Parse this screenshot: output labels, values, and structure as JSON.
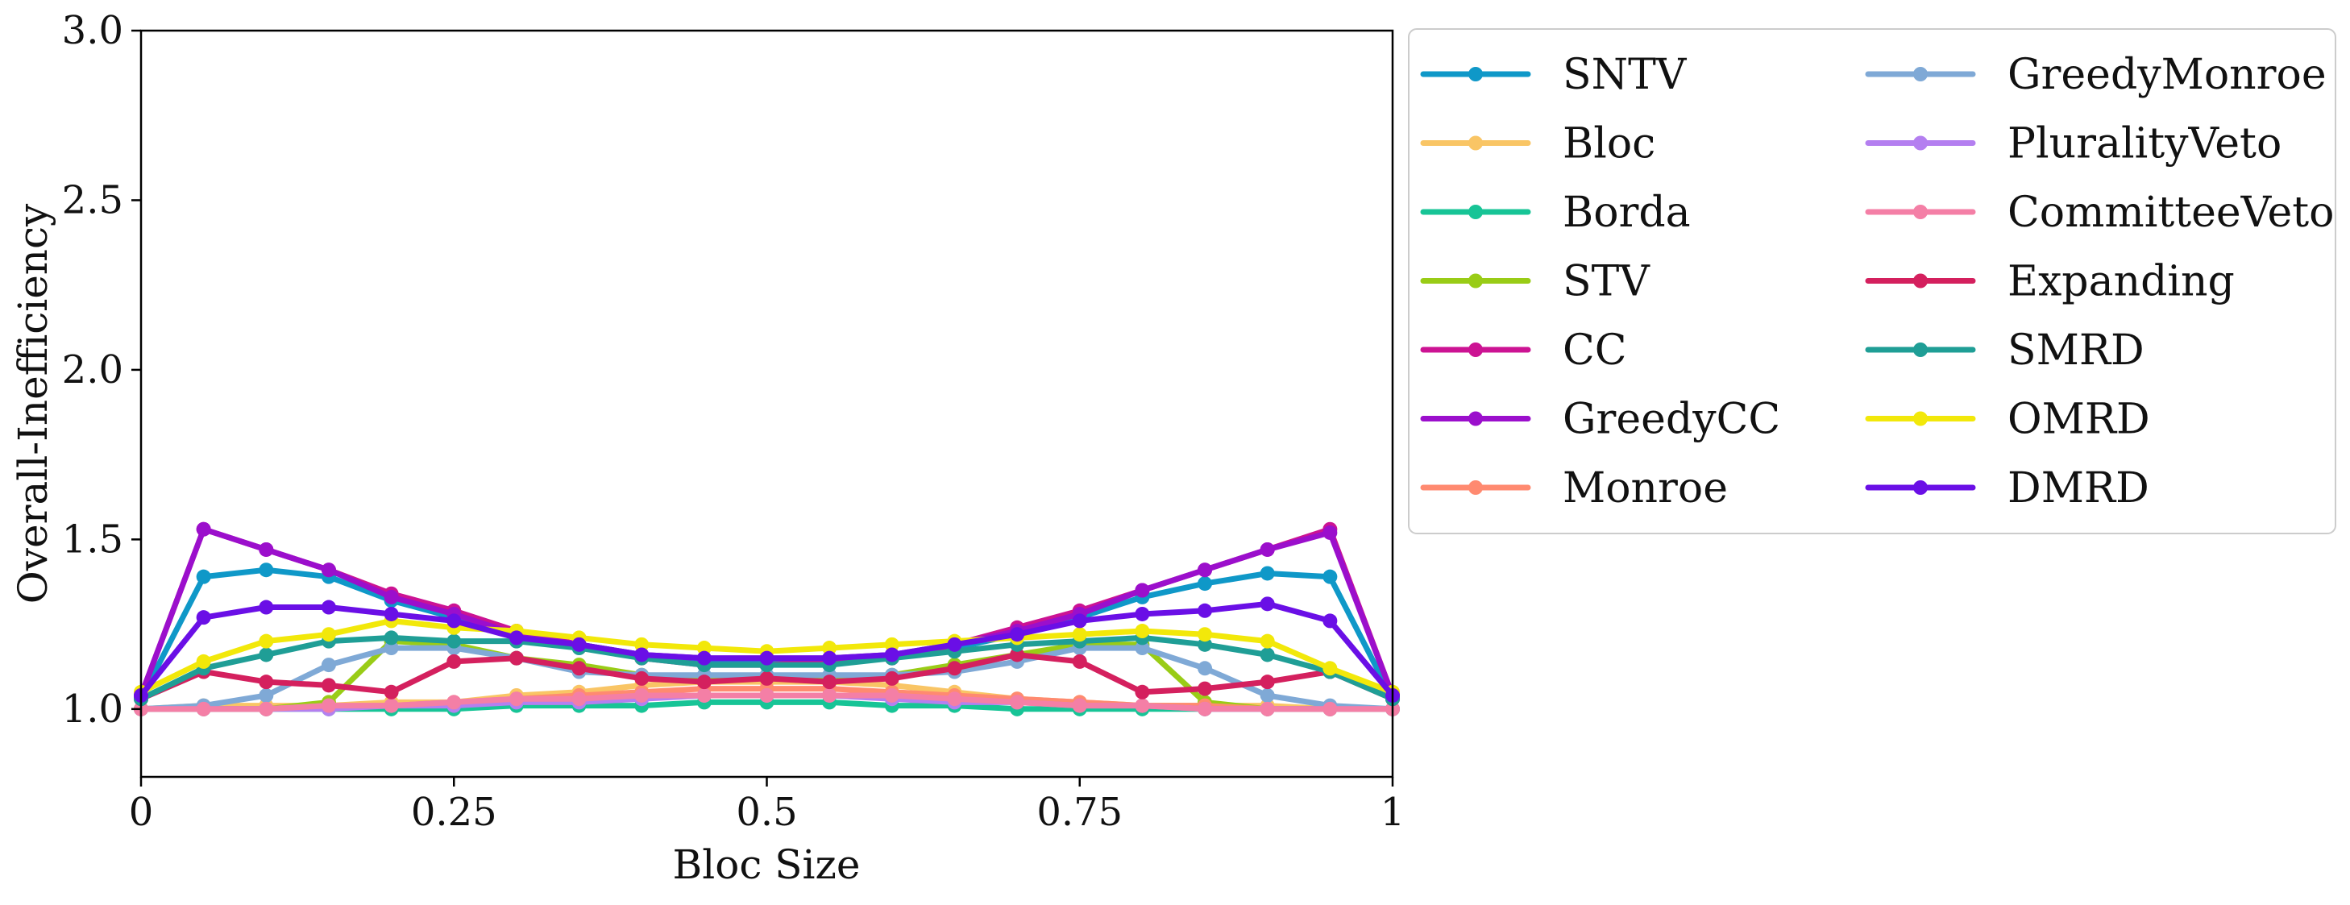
{
  "chart_data": {
    "type": "line",
    "xlabel": "Bloc Size",
    "ylabel": "Overall-Inefficiency",
    "xlim": [
      0,
      1
    ],
    "ylim": [
      0.8,
      3.0
    ],
    "x_ticks": [
      0,
      0.25,
      0.5,
      0.75,
      1
    ],
    "x_tick_labels": [
      "0",
      "0.25",
      "0.5",
      "0.75",
      "1"
    ],
    "y_ticks": [
      1.0,
      1.5,
      2.0,
      2.5,
      3.0
    ],
    "y_tick_labels": [
      "1.0",
      "1.5",
      "2.0",
      "2.5",
      "3.0"
    ],
    "grid": false,
    "legend_position": "right-outside-top",
    "legend_columns": 2,
    "x": [
      0,
      0.05,
      0.1,
      0.15,
      0.2,
      0.25,
      0.3,
      0.35,
      0.4,
      0.45,
      0.5,
      0.55,
      0.6,
      0.65,
      0.7,
      0.75,
      0.8,
      0.85,
      0.9,
      0.95,
      1.0
    ],
    "series": [
      {
        "name": "SNTV",
        "color": "#0f98c8",
        "values": [
          1.03,
          1.39,
          1.41,
          1.39,
          1.32,
          1.27,
          1.22,
          1.19,
          1.16,
          1.14,
          1.14,
          1.14,
          1.15,
          1.18,
          1.22,
          1.27,
          1.33,
          1.37,
          1.4,
          1.39,
          1.03
        ]
      },
      {
        "name": "Bloc",
        "color": "#f9c565",
        "values": [
          1.0,
          1.01,
          1.01,
          1.01,
          1.02,
          1.02,
          1.04,
          1.05,
          1.07,
          1.08,
          1.08,
          1.08,
          1.07,
          1.05,
          1.03,
          1.02,
          1.01,
          1.01,
          1.01,
          1.0,
          1.0
        ]
      },
      {
        "name": "Borda",
        "color": "#17c496",
        "values": [
          1.0,
          1.0,
          1.0,
          1.0,
          1.0,
          1.0,
          1.01,
          1.01,
          1.01,
          1.02,
          1.02,
          1.02,
          1.01,
          1.01,
          1.0,
          1.0,
          1.0,
          1.0,
          1.0,
          1.0,
          1.0
        ]
      },
      {
        "name": "STV",
        "color": "#99cc16",
        "values": [
          1.0,
          1.0,
          1.0,
          1.02,
          1.2,
          1.19,
          1.15,
          1.13,
          1.1,
          1.09,
          1.09,
          1.09,
          1.1,
          1.13,
          1.16,
          1.19,
          1.19,
          1.02,
          1.0,
          1.0,
          1.0
        ]
      },
      {
        "name": "CC",
        "color": "#cc1393",
        "values": [
          1.04,
          1.53,
          1.47,
          1.41,
          1.34,
          1.29,
          1.23,
          1.19,
          1.15,
          1.13,
          1.13,
          1.14,
          1.15,
          1.19,
          1.24,
          1.29,
          1.35,
          1.41,
          1.47,
          1.53,
          1.04
        ]
      },
      {
        "name": "GreedyCC",
        "color": "#9b0fcc",
        "values": [
          1.04,
          1.53,
          1.47,
          1.41,
          1.33,
          1.28,
          1.22,
          1.19,
          1.16,
          1.15,
          1.15,
          1.15,
          1.16,
          1.19,
          1.23,
          1.28,
          1.35,
          1.41,
          1.47,
          1.52,
          1.04
        ]
      },
      {
        "name": "Monroe",
        "color": "#ff8a70",
        "values": [
          1.0,
          1.0,
          1.0,
          1.01,
          1.01,
          1.02,
          1.03,
          1.04,
          1.05,
          1.06,
          1.06,
          1.06,
          1.05,
          1.04,
          1.03,
          1.02,
          1.01,
          1.01,
          1.0,
          1.0,
          1.0
        ]
      },
      {
        "name": "GreedyMonroe",
        "color": "#7fa9d6",
        "values": [
          1.0,
          1.01,
          1.04,
          1.13,
          1.18,
          1.18,
          1.15,
          1.11,
          1.1,
          1.1,
          1.1,
          1.1,
          1.1,
          1.11,
          1.14,
          1.18,
          1.18,
          1.12,
          1.04,
          1.01,
          1.0
        ]
      },
      {
        "name": "PluralityVeto",
        "color": "#b47ff0",
        "values": [
          1.0,
          1.0,
          1.0,
          1.0,
          1.01,
          1.01,
          1.02,
          1.02,
          1.03,
          1.04,
          1.04,
          1.04,
          1.03,
          1.02,
          1.02,
          1.01,
          1.01,
          1.0,
          1.0,
          1.0,
          1.0
        ]
      },
      {
        "name": "CommitteeVeto",
        "color": "#f47fa6",
        "values": [
          1.0,
          1.0,
          1.0,
          1.01,
          1.01,
          1.02,
          1.03,
          1.03,
          1.04,
          1.04,
          1.04,
          1.04,
          1.04,
          1.03,
          1.02,
          1.01,
          1.01,
          1.0,
          1.0,
          1.0,
          1.0
        ]
      },
      {
        "name": "Expanding",
        "color": "#d4205e",
        "values": [
          1.03,
          1.11,
          1.08,
          1.07,
          1.05,
          1.14,
          1.15,
          1.12,
          1.09,
          1.08,
          1.09,
          1.08,
          1.09,
          1.12,
          1.16,
          1.14,
          1.05,
          1.06,
          1.08,
          1.11,
          1.03
        ]
      },
      {
        "name": "SMRD",
        "color": "#1f9e96",
        "values": [
          1.03,
          1.12,
          1.16,
          1.2,
          1.21,
          1.2,
          1.2,
          1.18,
          1.15,
          1.13,
          1.13,
          1.13,
          1.15,
          1.17,
          1.19,
          1.2,
          1.21,
          1.19,
          1.16,
          1.11,
          1.03
        ]
      },
      {
        "name": "OMRD",
        "color": "#f2e80a",
        "values": [
          1.05,
          1.14,
          1.2,
          1.22,
          1.26,
          1.24,
          1.23,
          1.21,
          1.19,
          1.18,
          1.17,
          1.18,
          1.19,
          1.2,
          1.21,
          1.22,
          1.23,
          1.22,
          1.2,
          1.12,
          1.05
        ]
      },
      {
        "name": "DMRD",
        "color": "#6a0fe6",
        "values": [
          1.04,
          1.27,
          1.3,
          1.3,
          1.28,
          1.26,
          1.21,
          1.19,
          1.16,
          1.15,
          1.15,
          1.15,
          1.16,
          1.19,
          1.22,
          1.26,
          1.28,
          1.29,
          1.31,
          1.26,
          1.04
        ]
      }
    ]
  }
}
